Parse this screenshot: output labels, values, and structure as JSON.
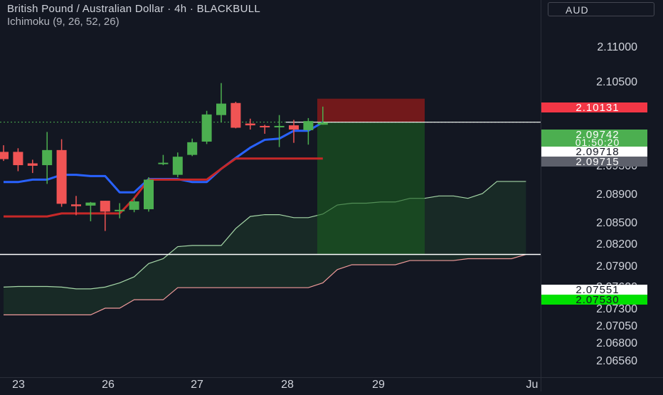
{
  "header": {
    "symbol_title": "British Pound / Australian Dollar · 4h · BLACKBULL",
    "indicator": "Ichimoku (9, 26, 52, 26)"
  },
  "currency_button": "AUD",
  "colors": {
    "background": "#131722",
    "up_candle": "#4caf50",
    "down_candle": "#f05454",
    "tenkan": "#2962ff",
    "kijun": "#c62828",
    "senkou_a": "#a5d6a7",
    "senkou_b": "#ef9a9a",
    "cloud": "#1e3a2a",
    "stop_zone": "#8b1a1a",
    "target_zone": "#1b5e20"
  },
  "chart_data": {
    "type": "candlestick",
    "symbol": "GBPAUD",
    "timeframe": "4h",
    "x_ticks": [
      "23",
      "26",
      "27",
      "28",
      "29",
      "Ju"
    ],
    "y_ticks": [
      "2.11000",
      "2.10500",
      "2.08900",
      "2.08500",
      "2.08200",
      "2.07900",
      "2.07300",
      "2.07050",
      "2.06800",
      "2.06560"
    ],
    "hidden_ticks": [
      "2.09300",
      "2.07600"
    ],
    "price_tags": [
      {
        "label": "2.10131",
        "color": "#f23645",
        "text_color": "#ffffff",
        "value": 2.10131
      },
      {
        "label": "2.09742",
        "sub": "01:50:20",
        "color": "#4caf50",
        "text_color": "#ffffff",
        "value": 2.09742
      },
      {
        "label": "2.09718",
        "color": "#ffffff",
        "text_color": "#131722",
        "value": 2.09718
      },
      {
        "label": "2.09715",
        "color": "#5d606b",
        "text_color": "#ffffff",
        "value": 2.09715
      },
      {
        "label": "2.07551",
        "color": "#ffffff",
        "text_color": "#131722",
        "value": 2.07551
      },
      {
        "label": "2.07530",
        "color": "#00e000",
        "text_color": "#131722",
        "value": 2.0753
      }
    ],
    "candles": [
      {
        "open": 2.0925,
        "high": 2.0936,
        "low": 2.091,
        "close": 2.0913
      },
      {
        "open": 2.0925,
        "high": 2.0931,
        "low": 2.0893,
        "close": 2.0903
      },
      {
        "open": 2.0906,
        "high": 2.0912,
        "low": 2.089,
        "close": 2.0902
      },
      {
        "open": 2.0903,
        "high": 2.0958,
        "low": 2.0872,
        "close": 2.0928
      },
      {
        "open": 2.0928,
        "high": 2.0946,
        "low": 2.0834,
        "close": 2.0839
      },
      {
        "open": 2.0838,
        "high": 2.0852,
        "low": 2.082,
        "close": 2.0835
      },
      {
        "open": 2.0836,
        "high": 2.0842,
        "low": 2.081,
        "close": 2.0841
      },
      {
        "open": 2.0844,
        "high": 2.0844,
        "low": 2.0794,
        "close": 2.0826
      },
      {
        "open": 2.0829,
        "high": 2.084,
        "low": 2.0815,
        "close": 2.0829
      },
      {
        "open": 2.0829,
        "high": 2.0849,
        "low": 2.0825,
        "close": 2.0843
      },
      {
        "open": 2.083,
        "high": 2.0883,
        "low": 2.0826,
        "close": 2.0879
      },
      {
        "open": 2.0905,
        "high": 2.092,
        "low": 2.0903,
        "close": 2.0907
      },
      {
        "open": 2.0887,
        "high": 2.0924,
        "low": 2.0883,
        "close": 2.0917
      },
      {
        "open": 2.092,
        "high": 2.0947,
        "low": 2.0918,
        "close": 2.0941
      },
      {
        "open": 2.0942,
        "high": 2.0993,
        "low": 2.0938,
        "close": 2.0987
      },
      {
        "open": 2.0986,
        "high": 2.1039,
        "low": 2.0974,
        "close": 2.1005
      },
      {
        "open": 2.1006,
        "high": 2.1008,
        "low": 2.0964,
        "close": 2.0965
      },
      {
        "open": 2.0972,
        "high": 2.098,
        "low": 2.0962,
        "close": 2.0969
      },
      {
        "open": 2.0968,
        "high": 2.097,
        "low": 2.0955,
        "close": 2.0966
      },
      {
        "open": 2.0966,
        "high": 2.0986,
        "low": 2.0933,
        "close": 2.0968
      },
      {
        "open": 2.0969,
        "high": 2.0978,
        "low": 2.094,
        "close": 2.0962
      },
      {
        "open": 2.0961,
        "high": 2.0981,
        "low": 2.0937,
        "close": 2.0976
      },
      {
        "open": 2.097,
        "high": 2.1,
        "low": 2.097,
        "close": 2.0974
      }
    ],
    "tenkan": [
      2.0875,
      2.0875,
      2.0879,
      2.0879,
      2.0887,
      2.0887,
      2.0885,
      2.0885,
      2.0858,
      2.0858,
      2.088,
      2.088,
      2.088,
      2.0875,
      2.0875,
      2.0897,
      2.0915,
      2.0932,
      2.0945,
      2.0947,
      2.096,
      2.096,
      2.0974
    ],
    "kijun": [
      2.0818,
      2.0818,
      2.0818,
      2.0818,
      2.0823,
      2.0823,
      2.0823,
      2.0823,
      2.0823,
      2.0848,
      2.0879,
      2.0879,
      2.0879,
      2.0879,
      2.0879,
      2.0897,
      2.0914,
      2.0914,
      2.0914,
      2.0914,
      2.0914,
      2.0914,
      2.0914
    ],
    "senkou_a": [
      2.0701,
      2.0702,
      2.0702,
      2.0702,
      2.0701,
      2.0698,
      2.0698,
      2.0701,
      2.0708,
      2.0718,
      2.074,
      2.0748,
      2.0768,
      2.077,
      2.077,
      2.077,
      2.0798,
      2.0818,
      2.0821,
      2.0821,
      2.0816,
      2.0816,
      2.0822,
      2.0837,
      2.084,
      2.084,
      2.0842,
      2.0842,
      2.0848,
      2.0848,
      2.0852,
      2.0852,
      2.0848,
      2.0856,
      2.0876,
      2.0876,
      2.0876
    ],
    "senkou_b": [
      2.0655,
      2.0655,
      2.0655,
      2.0655,
      2.0655,
      2.0655,
      2.0655,
      2.0666,
      2.0666,
      2.068,
      2.068,
      2.068,
      2.07,
      2.07,
      2.07,
      2.07,
      2.07,
      2.07,
      2.07,
      2.07,
      2.07,
      2.07,
      2.0708,
      2.073,
      2.0738,
      2.0738,
      2.0738,
      2.0738,
      2.0745,
      2.0745,
      2.0745,
      2.0745,
      2.0748,
      2.0748,
      2.0748,
      2.0748,
      2.0755
    ],
    "position": {
      "type": "short",
      "entry": 2.09742,
      "stop": 2.10131,
      "target": 2.07551
    }
  }
}
